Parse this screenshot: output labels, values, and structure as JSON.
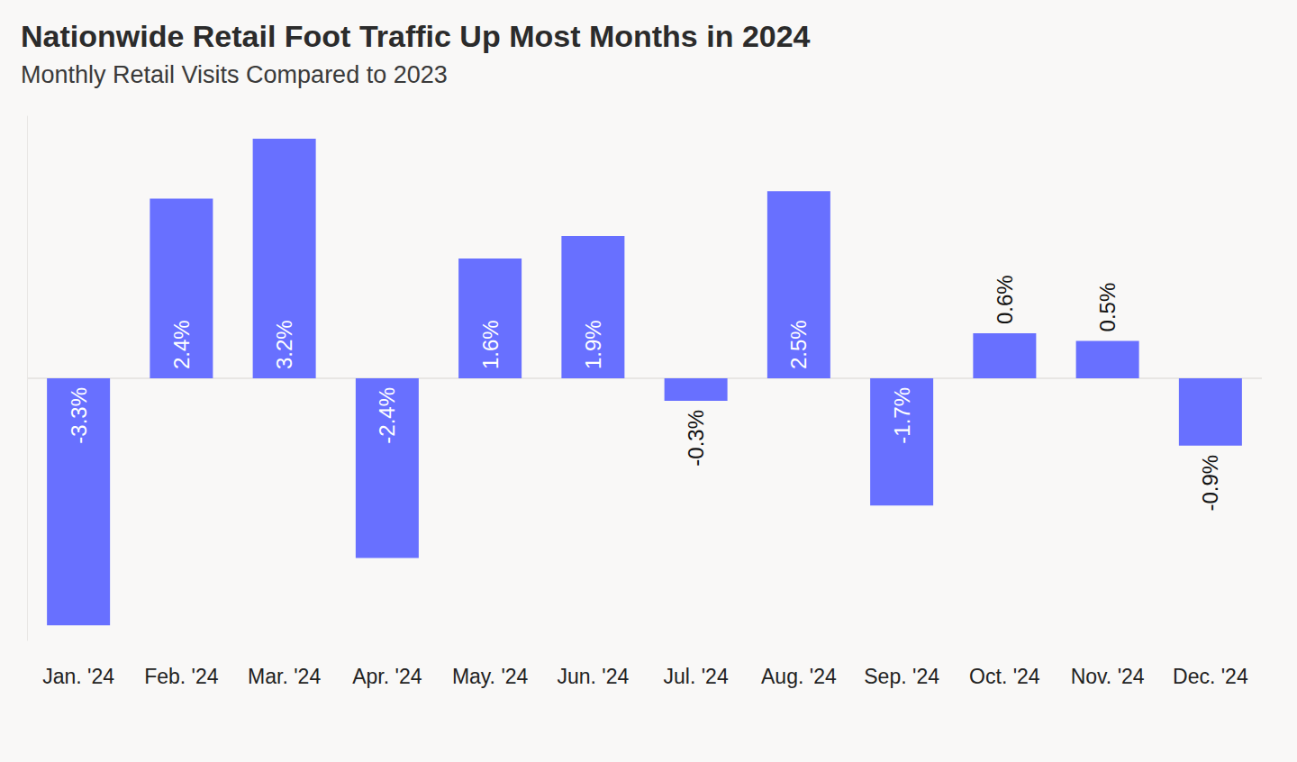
{
  "chart_data": {
    "type": "bar",
    "title": "Nationwide Retail Foot Traffic Up Most Months in 2024",
    "subtitle": "Monthly Retail Visits Compared to 2023",
    "categories": [
      "Jan. '24",
      "Feb. '24",
      "Mar. '24",
      "Apr. '24",
      "May. '24",
      "Jun. '24",
      "Jul. '24",
      "Aug. '24",
      "Sep. '24",
      "Oct. '24",
      "Nov. '24",
      "Dec. '24"
    ],
    "values": [
      -3.3,
      2.4,
      3.2,
      -2.4,
      1.6,
      1.9,
      -0.3,
      2.5,
      -1.7,
      0.6,
      0.5,
      -0.9
    ],
    "value_labels": [
      "-3.3%",
      "2.4%",
      "3.2%",
      "-2.4%",
      "1.6%",
      "1.9%",
      "-0.3%",
      "2.5%",
      "-1.7%",
      "0.6%",
      "0.5%",
      "-0.9%"
    ],
    "color": "#6870ff",
    "ylim": [
      -3.5,
      3.5
    ],
    "yticks": [
      0
    ],
    "grid": true,
    "data_labels": true,
    "tick_labels": "x"
  }
}
